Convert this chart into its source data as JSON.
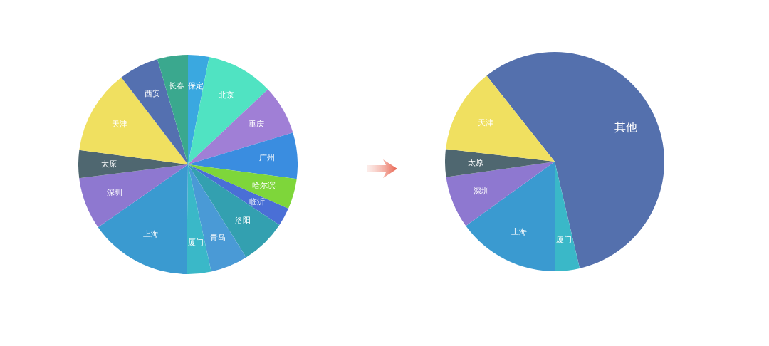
{
  "chart_data": [
    {
      "type": "pie",
      "categories": [
        "保定",
        "北京",
        "重庆",
        "广州",
        "哈尔滨",
        "临沂",
        "洛阳",
        "青岛",
        "厦门",
        "上海",
        "深圳",
        "太原",
        "天津",
        "西安",
        "长春"
      ],
      "values": [
        3.1,
        9.9,
        7.3,
        6.8,
        4.5,
        2.7,
        6.8,
        5.5,
        3.6,
        15.1,
        7.7,
        4.1,
        12.5,
        5.9,
        4.5
      ],
      "colors": [
        "#3aa8e0",
        "#50e3c2",
        "#a07fd6",
        "#3a8de0",
        "#7ed63a",
        "#4a6fd6",
        "#33a0b0",
        "#4a9ad6",
        "#3ab8c8",
        "#3a9ad0",
        "#8e78d0",
        "#4f6770",
        "#f0e060",
        "#5470b0",
        "#3aa88e"
      ]
    },
    {
      "type": "pie",
      "categories": [
        "其他",
        "厦门",
        "上海",
        "深圳",
        "太原",
        "天津"
      ],
      "values": [
        57,
        3.6,
        15.1,
        7.7,
        4.1,
        12.5
      ],
      "colors": [
        "#5470ad",
        "#3ab8c8",
        "#3a9ad0",
        "#8e78d0",
        "#4f6770",
        "#f0e060"
      ]
    }
  ]
}
